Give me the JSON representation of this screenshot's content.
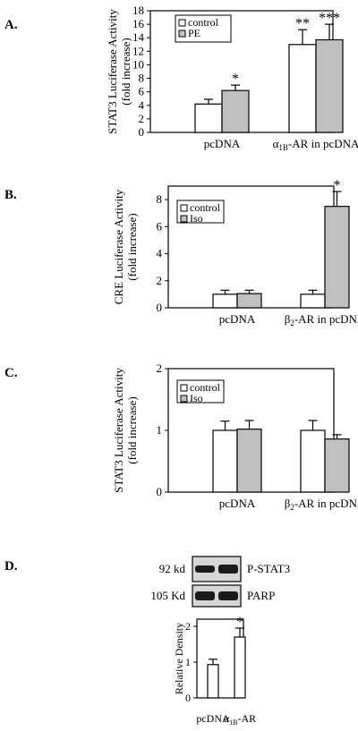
{
  "colors": {
    "control": "#ffffff",
    "treated": "#c0c0c0",
    "stroke": "#000000",
    "blot_bg": "#d6d6d6",
    "blot_band": "#1a1a1a"
  },
  "chart_data": [
    {
      "type": "bar",
      "panel_label": "A.",
      "ylabel": [
        "STAT3 Luciferase Activity",
        "(fold increase)"
      ],
      "ylim": [
        0,
        18
      ],
      "yticks": [
        0,
        2,
        4,
        6,
        8,
        10,
        12,
        14,
        16,
        18
      ],
      "categories": [
        {
          "label": "pcDNA"
        },
        {
          "label": "α",
          "sub": "1B",
          "rest": "-AR in pcDNA"
        }
      ],
      "series": [
        {
          "name": "control",
          "values": [
            4.2,
            13.0
          ],
          "errors": [
            0.7,
            2.2
          ],
          "sig": [
            "",
            "**"
          ]
        },
        {
          "name": "PE",
          "values": [
            6.2,
            13.7
          ],
          "errors": [
            0.8,
            2.3
          ],
          "sig": [
            "*",
            "***"
          ]
        }
      ],
      "legend": "top-left"
    },
    {
      "type": "bar",
      "panel_label": "B.",
      "ylabel": [
        "CRE Luciferase Activity",
        "(fold increase)"
      ],
      "ylim": [
        0,
        9
      ],
      "yticks": [
        0,
        2,
        4,
        6,
        8
      ],
      "categories": [
        {
          "label": "pcDNA"
        },
        {
          "label": "β",
          "sub": "2",
          "rest": "-AR in pcDNA"
        }
      ],
      "series": [
        {
          "name": "control",
          "values": [
            1.0,
            1.0
          ],
          "errors": [
            0.3,
            0.3
          ],
          "sig": [
            "",
            ""
          ]
        },
        {
          "name": "Iso",
          "values": [
            1.05,
            7.5
          ],
          "errors": [
            0.25,
            1.1
          ],
          "sig": [
            "",
            "*"
          ]
        }
      ],
      "legend": "top-left"
    },
    {
      "type": "bar",
      "panel_label": "C.",
      "ylabel": [
        "STAT3 Luciferase Activity",
        "(fold increase)"
      ],
      "ylim": [
        0,
        2
      ],
      "yticks": [
        0,
        1,
        2
      ],
      "categories": [
        {
          "label": "pcDNA"
        },
        {
          "label": "β",
          "sub": "2",
          "rest": "-AR in pcDNA"
        }
      ],
      "series": [
        {
          "name": "control",
          "values": [
            1.0,
            1.0
          ],
          "errors": [
            0.15,
            0.16
          ],
          "sig": [
            "",
            ""
          ]
        },
        {
          "name": "Iso",
          "values": [
            1.02,
            0.86
          ],
          "errors": [
            0.14,
            0.07
          ],
          "sig": [
            "",
            ""
          ]
        }
      ],
      "legend": "top-left"
    },
    {
      "type": "bar",
      "panel_label": "D.",
      "ylabel": [
        "Relative Density"
      ],
      "ylim": [
        0,
        2.2
      ],
      "yticks": [
        0,
        1,
        2
      ],
      "categories": [
        {
          "label": "pcDNA"
        },
        {
          "label": "α",
          "sub": "1B",
          "rest": "-AR"
        }
      ],
      "series": [
        {
          "name": "",
          "values": [
            0.93,
            1.7
          ],
          "errors": [
            0.15,
            0.25
          ],
          "sig": [
            "",
            "*"
          ]
        }
      ],
      "blots": [
        {
          "mw": "92 kd",
          "label": "P-STAT3"
        },
        {
          "mw": "105 Kd",
          "label": "PARP"
        }
      ]
    }
  ]
}
